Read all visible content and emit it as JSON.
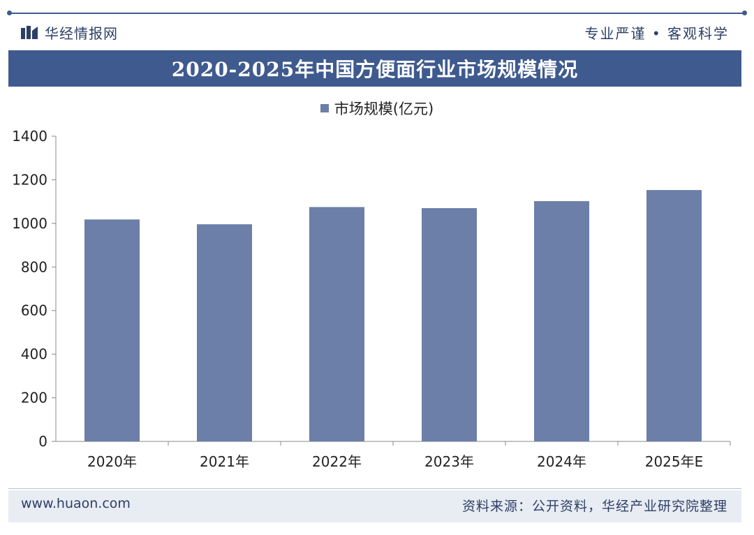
{
  "header": {
    "brand": "华经情报网",
    "slogan": "专业严谨 • 客观科学"
  },
  "title": "2020-2025年中国方便面行业市场规模情况",
  "legend": {
    "label": "市场规模(亿元)"
  },
  "colors": {
    "bar": "#6b7fa8",
    "band": "#3f5a8e",
    "axis": "#888888"
  },
  "chart_data": {
    "type": "bar",
    "title": "2020-2025年中国方便面行业市场规模情况",
    "xlabel": "",
    "ylabel": "",
    "categories": [
      "2020年",
      "2021年",
      "2022年",
      "2023年",
      "2024年",
      "2025年E"
    ],
    "series": [
      {
        "name": "市场规模(亿元)",
        "values": [
          1018,
          996,
          1075,
          1070,
          1102,
          1153
        ]
      }
    ],
    "ylim": [
      0,
      1400
    ],
    "yticks": [
      0,
      200,
      400,
      600,
      800,
      1000,
      1200,
      1400
    ],
    "grid": false
  },
  "footer": {
    "website": "www.huaon.com",
    "source": "资料来源：公开资料，华经产业研究院整理"
  }
}
